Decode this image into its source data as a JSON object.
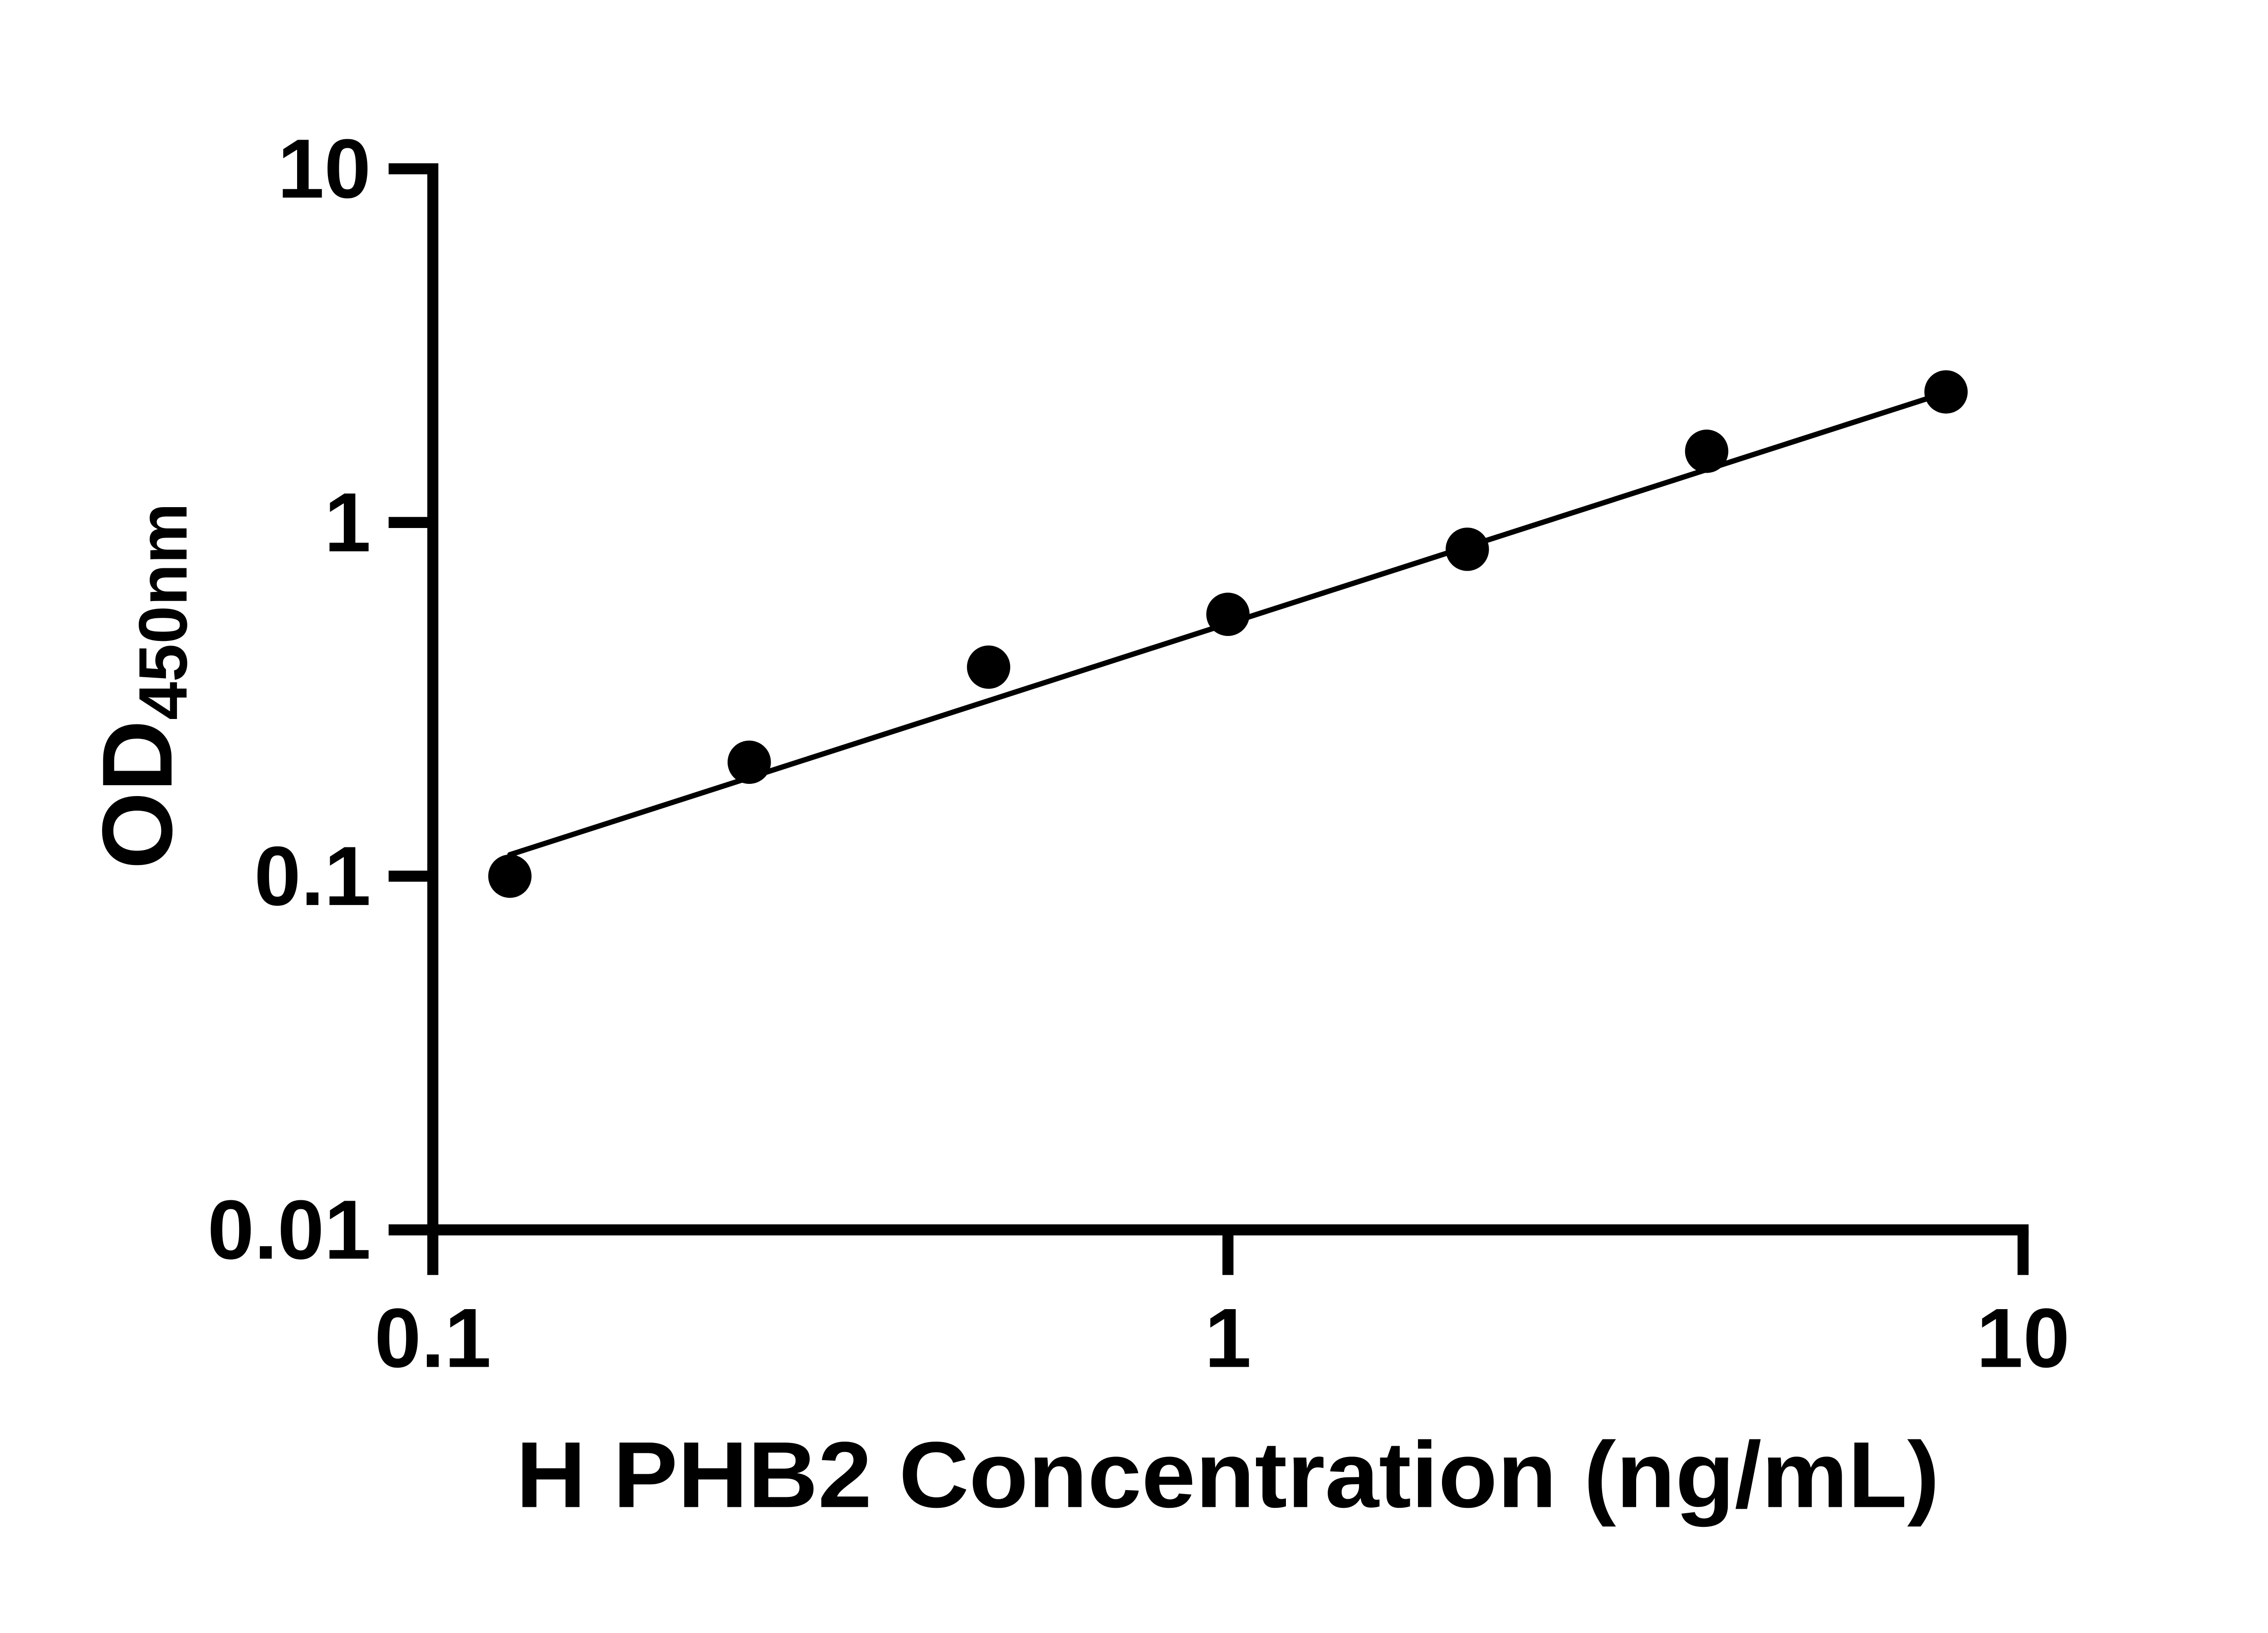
{
  "chart_data": {
    "type": "scatter",
    "title": "",
    "xlabel": "H PHB2 Concentration (ng/mL)",
    "ylabel_main": "OD",
    "ylabel_sub": "450nm",
    "x_scale": "log",
    "y_scale": "log",
    "xlim": [
      0.1,
      10
    ],
    "ylim": [
      0.01,
      10
    ],
    "grid": false,
    "legend_position": "none",
    "axis_color": "#000000",
    "marker_color": "#000000",
    "trend_line_color": "#000000",
    "background_color": "#ffffff",
    "x_ticks": [
      {
        "value": 0.1,
        "label": "0.1"
      },
      {
        "value": 1,
        "label": "1"
      },
      {
        "value": 10,
        "label": "10"
      }
    ],
    "y_ticks": [
      {
        "value": 10,
        "label": "10"
      },
      {
        "value": 1,
        "label": "1"
      },
      {
        "value": 0.1,
        "label": "0.1"
      },
      {
        "value": 0.01,
        "label": "0.01"
      }
    ],
    "points": [
      {
        "x": 0.125,
        "od": 0.1
      },
      {
        "x": 0.25,
        "od": 0.21
      },
      {
        "x": 0.5,
        "od": 0.39
      },
      {
        "x": 1,
        "od": 0.55
      },
      {
        "x": 2,
        "od": 0.84
      },
      {
        "x": 4,
        "od": 1.59
      },
      {
        "x": 8,
        "od": 2.34
      }
    ],
    "trend_line": {
      "x_start": 0.125,
      "od_start": 0.115,
      "x_end": 8,
      "od_end": 2.33
    }
  }
}
